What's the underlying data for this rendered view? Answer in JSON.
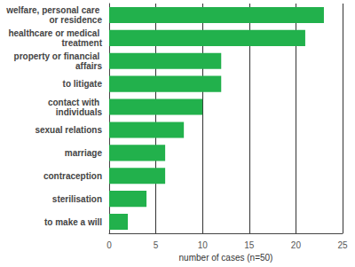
{
  "chart_data": {
    "type": "bar",
    "orientation": "horizontal",
    "x_label": "number of cases (n=50)",
    "categories": [
      "welfare, personal care or residence",
      "healthcare or medical treatment",
      "property or financial affairs",
      "to litigate",
      "contact with individuals",
      "sexual relations",
      "marriage",
      "contraception",
      "sterilisation",
      "to make a will"
    ],
    "values": [
      23,
      21,
      12,
      12,
      10,
      8,
      6,
      6,
      4,
      2
    ],
    "color": "#22b14c",
    "xlim": [
      0,
      25
    ],
    "xticks": [
      0,
      5,
      10,
      15,
      20,
      25
    ],
    "grid": true
  }
}
